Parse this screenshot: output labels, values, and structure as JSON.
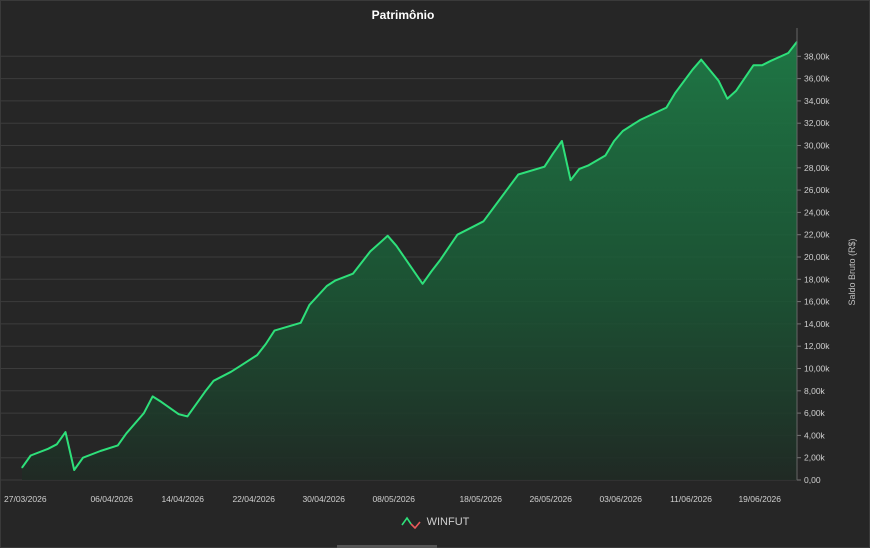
{
  "chart_data": {
    "type": "area",
    "title": "Patrimônio",
    "ylabel": "Saldo Bruto (R$)",
    "xlabel": "",
    "ylim": [
      0,
      38000
    ],
    "y_ticks": [
      "0,00",
      "2,00k",
      "4,00k",
      "6,00k",
      "8,00k",
      "10,00k",
      "12,00k",
      "14,00k",
      "16,00k",
      "18,00k",
      "20,00k",
      "22,00k",
      "24,00k",
      "26,00k",
      "28,00k",
      "30,00k",
      "32,00k",
      "34,00k",
      "36,00k",
      "38,00k"
    ],
    "x_ticks": [
      "27/03/2026",
      "06/04/2026",
      "14/04/2026",
      "22/04/2026",
      "30/04/2026",
      "08/05/2026",
      "18/05/2026",
      "26/05/2026",
      "03/06/2026",
      "11/06/2026",
      "19/06/2026"
    ],
    "grid": true,
    "legend_position": "bottom",
    "series": [
      {
        "name": "WINFUT",
        "color": "#2ee07a",
        "points": [
          [
            0,
            1100
          ],
          [
            1,
            2200
          ],
          [
            3,
            2800
          ],
          [
            4,
            3200
          ],
          [
            5,
            4300
          ],
          [
            6,
            900
          ],
          [
            7,
            2000
          ],
          [
            9,
            2600
          ],
          [
            11,
            3100
          ],
          [
            12,
            4200
          ],
          [
            14,
            6000
          ],
          [
            15,
            7500
          ],
          [
            16,
            7000
          ],
          [
            18,
            5900
          ],
          [
            19,
            5700
          ],
          [
            21,
            7900
          ],
          [
            22,
            8900
          ],
          [
            24,
            9700
          ],
          [
            25,
            10200
          ],
          [
            27,
            11200
          ],
          [
            28,
            12200
          ],
          [
            29,
            13400
          ],
          [
            32,
            14100
          ],
          [
            33,
            15700
          ],
          [
            35,
            17400
          ],
          [
            36,
            17900
          ],
          [
            38,
            18500
          ],
          [
            40,
            20500
          ],
          [
            42,
            21900
          ],
          [
            43,
            21000
          ],
          [
            46,
            17600
          ],
          [
            47,
            18700
          ],
          [
            48,
            19700
          ],
          [
            50,
            22000
          ],
          [
            52,
            22800
          ],
          [
            53,
            23200
          ],
          [
            55,
            25300
          ],
          [
            57,
            27400
          ],
          [
            60,
            28100
          ],
          [
            61,
            29300
          ],
          [
            62,
            30400
          ],
          [
            63,
            26900
          ],
          [
            64,
            27900
          ],
          [
            65,
            28200
          ],
          [
            67,
            29100
          ],
          [
            68,
            30400
          ],
          [
            69,
            31300
          ],
          [
            70,
            31800
          ],
          [
            71,
            32300
          ],
          [
            74,
            33400
          ],
          [
            75,
            34700
          ],
          [
            77,
            36800
          ],
          [
            78,
            37700
          ],
          [
            80,
            35800
          ],
          [
            81,
            34200
          ],
          [
            82,
            34900
          ],
          [
            84,
            37200
          ],
          [
            85,
            37200
          ],
          [
            86,
            37600
          ],
          [
            88,
            38300
          ],
          [
            89,
            39300
          ]
        ]
      }
    ]
  }
}
